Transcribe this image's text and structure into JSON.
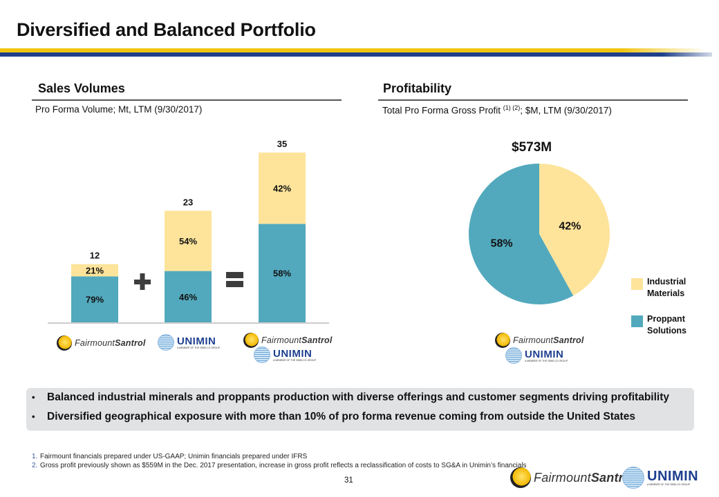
{
  "page": {
    "title": "Diversified and Balanced Portfolio",
    "page_number": "31"
  },
  "colors": {
    "industrial": "#fde49a",
    "proppant": "#52a9bd",
    "rule_yellow": "#f1c40f",
    "rule_blue": "#1f3f8a",
    "bullet_bg": "#e1e2e4"
  },
  "left_section": {
    "heading": "Sales Volumes",
    "subtitle": "Pro Forma Volume; Mt, LTM (9/30/2017)",
    "plus_symbol": "plus-icon",
    "equals_symbol": "equals-icon"
  },
  "right_section": {
    "heading": "Profitability",
    "subtitle_main": "Total Pro Forma Gross Profit ",
    "subtitle_sup": "(1) (2)",
    "subtitle_rest": "; $M, LTM (9/30/2017)"
  },
  "logos": {
    "fairmount_a": "Fairmount",
    "fairmount_b": "Santrol",
    "unimin": "UNIMIN",
    "unimin_tag": "A MEMBER OF THE SIBELCO GROUP"
  },
  "chart_data": [
    {
      "type": "bar",
      "stacked": true,
      "title": "Pro Forma Volume; Mt, LTM (9/30/2017)",
      "categories": [
        "Fairmount Santrol",
        "Unimin",
        "Fairmount Santrol + Unimin"
      ],
      "totals": [
        12,
        23,
        35
      ],
      "total_labels": [
        "12",
        "23",
        "35"
      ],
      "series": [
        {
          "name": "Proppant Solutions",
          "percent_labels": [
            "79%",
            "46%",
            "58%"
          ],
          "shares": [
            0.79,
            0.46,
            0.58
          ]
        },
        {
          "name": "Industrial Materials",
          "percent_labels": [
            "21%",
            "54%",
            "42%"
          ],
          "shares": [
            0.21,
            0.54,
            0.42
          ]
        }
      ],
      "xlabel": "",
      "ylabel": "",
      "ylim": [
        0,
        35
      ],
      "grid": false
    },
    {
      "type": "pie",
      "title": "$573M",
      "total": 573,
      "slices": [
        {
          "name": "Industrial Materials",
          "value": 42,
          "label": "42%"
        },
        {
          "name": "Proppant Solutions",
          "value": 58,
          "label": "58%"
        }
      ],
      "legend": [
        "Industrial Materials",
        "Proppant Solutions"
      ],
      "legend_position": "right"
    }
  ],
  "legend": {
    "items": [
      {
        "label": "Industrial Materials"
      },
      {
        "label": "Proppant Solutions"
      }
    ]
  },
  "bullets": [
    "Balanced industrial minerals and proppants production with diverse offerings and customer segments driving profitability",
    "Diversified geographical exposure with more than 10% of pro forma revenue coming from outside the United States"
  ],
  "footnotes": [
    {
      "num": "1.",
      "text": "Fairmount financials prepared under US-GAAP; Unimin financials prepared under IFRS"
    },
    {
      "num": "2.",
      "text": "Gross profit previously shown as $559M in the Dec. 2017 presentation, increase in gross profit reflects a reclassification of costs to SG&A in Unimin’s financials"
    }
  ]
}
